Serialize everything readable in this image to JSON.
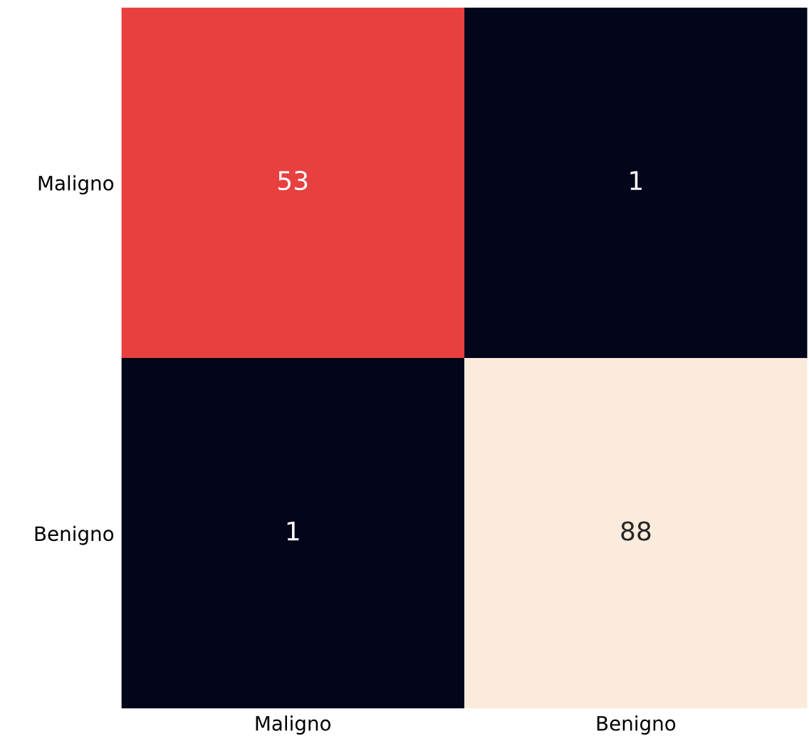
{
  "chart_data": {
    "type": "heatmap",
    "categories": [
      "Maligno",
      "Benigno"
    ],
    "y_categories": [
      "Maligno",
      "Benigno"
    ],
    "cells": [
      [
        53,
        1
      ],
      [
        1,
        88
      ]
    ],
    "data_labels": true
  }
}
